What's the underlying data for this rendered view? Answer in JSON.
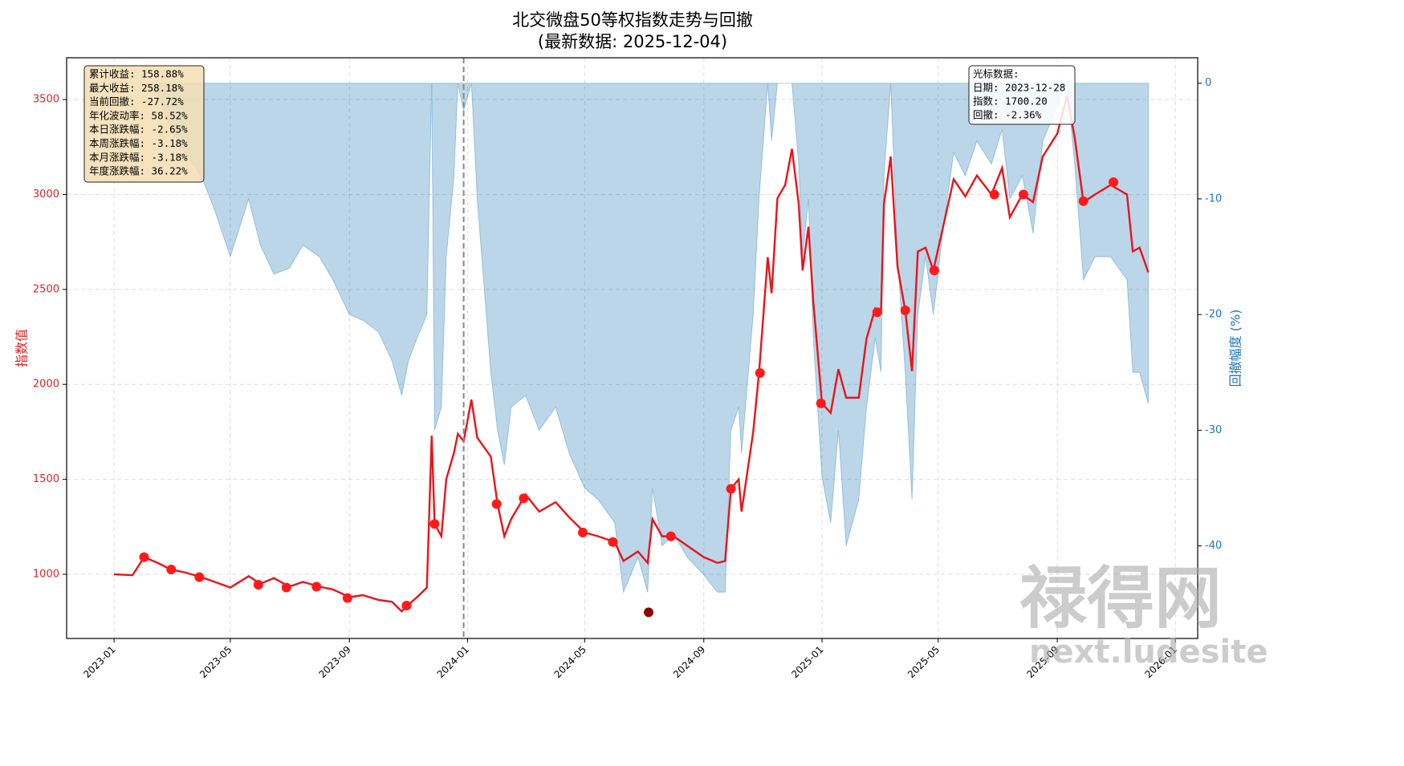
{
  "chart_data": {
    "type": "line",
    "title": "北交微盘50等权指数走势与回撤",
    "subtitle": "(最新数据: 2025-12-04)",
    "y_label": "指数值",
    "y2_label": "回撤幅度 (%)",
    "xlim": [
      "2022-11-13",
      "2026-01-24"
    ],
    "xticks": [
      "2023-01",
      "2023-05",
      "2023-09",
      "2024-01",
      "2024-05",
      "2024-09",
      "2025-01",
      "2025-05",
      "2025-09",
      "2026-01"
    ],
    "ylim": [
      662,
      3720
    ],
    "yticks": [
      1000,
      1500,
      2000,
      2500,
      3000,
      3500
    ],
    "y2lim": [
      -48,
      2.2
    ],
    "y2ticks": [
      0,
      -10,
      -20,
      -30,
      -40
    ],
    "y_color": "#d62728",
    "y2_color": "#1f77b4",
    "grid": true,
    "x": [
      "2023-01-01",
      "2023-01-20",
      "2023-02-01",
      "2023-02-15",
      "2023-03-01",
      "2023-03-15",
      "2023-04-01",
      "2023-04-15",
      "2023-05-01",
      "2023-05-20",
      "2023-06-01",
      "2023-06-15",
      "2023-07-01",
      "2023-07-15",
      "2023-08-01",
      "2023-08-15",
      "2023-09-01",
      "2023-09-15",
      "2023-10-01",
      "2023-10-15",
      "2023-10-25",
      "2023-11-01",
      "2023-11-10",
      "2023-11-20",
      "2023-11-25",
      "2023-11-28",
      "2023-12-05",
      "2023-12-10",
      "2023-12-18",
      "2023-12-22",
      "2023-12-28",
      "2024-01-05",
      "2024-01-11",
      "2024-01-25",
      "2024-02-01",
      "2024-02-08",
      "2024-02-15",
      "2024-03-01",
      "2024-03-15",
      "2024-04-01",
      "2024-04-15",
      "2024-05-01",
      "2024-05-15",
      "2024-06-01",
      "2024-06-10",
      "2024-06-25",
      "2024-07-05",
      "2024-07-10",
      "2024-07-20",
      "2024-08-01",
      "2024-08-15",
      "2024-09-01",
      "2024-09-15",
      "2024-09-23",
      "2024-09-29",
      "2024-10-07",
      "2024-10-10",
      "2024-10-22",
      "2024-10-28",
      "2024-11-06",
      "2024-11-10",
      "2024-11-16",
      "2024-11-24",
      "2024-12-01",
      "2024-12-08",
      "2024-12-12",
      "2024-12-18",
      "2024-12-23",
      "2025-01-01",
      "2025-01-10",
      "2025-01-18",
      "2025-01-26",
      "2025-02-08",
      "2025-02-16",
      "2025-02-25",
      "2025-03-03",
      "2025-03-06",
      "2025-03-13",
      "2025-03-20",
      "2025-03-28",
      "2025-04-04",
      "2025-04-10",
      "2025-04-18",
      "2025-04-26",
      "2025-05-07",
      "2025-05-17",
      "2025-05-29",
      "2025-06-10",
      "2025-06-25",
      "2025-07-06",
      "2025-07-14",
      "2025-07-27",
      "2025-08-07",
      "2025-08-17",
      "2025-09-01",
      "2025-09-11",
      "2025-09-19",
      "2025-09-28",
      "2025-10-10",
      "2025-10-26",
      "2025-11-12",
      "2025-11-18",
      "2025-11-25",
      "2025-12-04"
    ],
    "series": [
      {
        "type": "line",
        "color": "#e8141b",
        "values": [
          1000,
          995,
          1090,
          1060,
          1025,
          1010,
          985,
          960,
          930,
          990,
          950,
          980,
          935,
          960,
          935,
          920,
          880,
          890,
          865,
          855,
          805,
          840,
          880,
          930,
          1730,
          1265,
          1200,
          1500,
          1640,
          1740,
          1700,
          1920,
          1720,
          1620,
          1370,
          1200,
          1290,
          1420,
          1330,
          1380,
          1300,
          1220,
          1200,
          1170,
          1070,
          1120,
          1060,
          1290,
          1200,
          1200,
          1150,
          1090,
          1060,
          1070,
          1450,
          1500,
          1330,
          1750,
          2060,
          2670,
          2480,
          2980,
          3050,
          3240,
          2950,
          2600,
          2830,
          2440,
          1900,
          1850,
          2080,
          1930,
          1930,
          2240,
          2400,
          2380,
          2950,
          3200,
          2620,
          2390,
          2070,
          2700,
          2720,
          2600,
          2850,
          3080,
          2990,
          3100,
          3000,
          3140,
          2880,
          3000,
          2960,
          3200,
          3320,
          3520,
          3300,
          2960,
          3000,
          3050,
          3000,
          2700,
          2720,
          2590
        ]
      },
      {
        "type": "area",
        "axis": "y2",
        "color": "#1f77b4",
        "values": [
          0,
          0,
          0,
          -1,
          -4,
          -6,
          -8,
          -11,
          -15,
          -10,
          -14,
          -16.5,
          -16,
          -14,
          -15,
          -17,
          -20,
          -20.5,
          -21.5,
          -24,
          -27,
          -24,
          -22,
          -20,
          0,
          -30,
          -28,
          -15,
          -8,
          0,
          -2.36,
          0,
          -10,
          -25,
          -30,
          -33,
          -28,
          -27,
          -30,
          -28,
          -32,
          -35,
          -36,
          -38,
          -44,
          -41,
          -44,
          -35,
          -40,
          -39,
          -41,
          -42.5,
          -44,
          -44,
          -30,
          -28,
          -32,
          -20,
          -10,
          0,
          -5,
          0,
          0,
          0,
          -7,
          -15,
          -10,
          -22,
          -34,
          -38,
          -30,
          -40,
          -36,
          -28,
          -22,
          -25,
          -8,
          0,
          -15,
          -25,
          -36,
          -20,
          -15,
          -20,
          -12,
          -6,
          -8,
          -5,
          -7,
          -4,
          -10,
          -8,
          -13,
          -5,
          -2,
          0,
          -7,
          -17,
          -15,
          -15,
          -17,
          -25,
          -25,
          -27.72
        ]
      }
    ],
    "markers": [
      {
        "color": "#ff1a1a",
        "x": [
          "2023-02-01",
          "2023-03-01",
          "2023-03-30",
          "2023-05-30",
          "2023-06-28",
          "2023-07-29",
          "2023-08-30",
          "2023-10-30",
          "2023-11-28",
          "2024-01-31",
          "2024-02-28",
          "2024-04-29",
          "2024-05-30",
          "2024-07-29",
          "2024-09-29",
          "2024-10-29",
          "2024-12-31",
          "2025-02-27",
          "2025-03-28",
          "2025-04-27",
          "2025-06-28",
          "2025-07-28",
          "2025-09-28",
          "2025-10-29"
        ],
        "values": [
          1090,
          1025,
          985,
          945,
          930,
          935,
          875,
          835,
          1265,
          1370,
          1400,
          1220,
          1170,
          1200,
          1450,
          2060,
          1900,
          2380,
          2390,
          2600,
          3000,
          3000,
          2965,
          3065
        ]
      },
      {
        "color": "#8b0000",
        "x": [
          "2024-07-06"
        ],
        "values": [
          800
        ]
      }
    ],
    "cursor": {
      "x": "2023-12-28",
      "title": "光标数据:",
      "lines": [
        "日期: 2023-12-28",
        "指数: 1700.20",
        "回撤: -2.36%"
      ]
    },
    "stats": [
      "累计收益: 158.88%",
      "最大收益: 258.18%",
      "当前回撤: -27.72%",
      "年化波动率: 58.52%",
      "本日涨跌幅: -2.65%",
      "本周涨跌幅: -3.18%",
      "本月涨跌幅: -3.18%",
      "年度涨跌幅: 36.22%"
    ]
  },
  "watermark": {
    "brand": "禄得网",
    "site": "next.ludesite"
  }
}
